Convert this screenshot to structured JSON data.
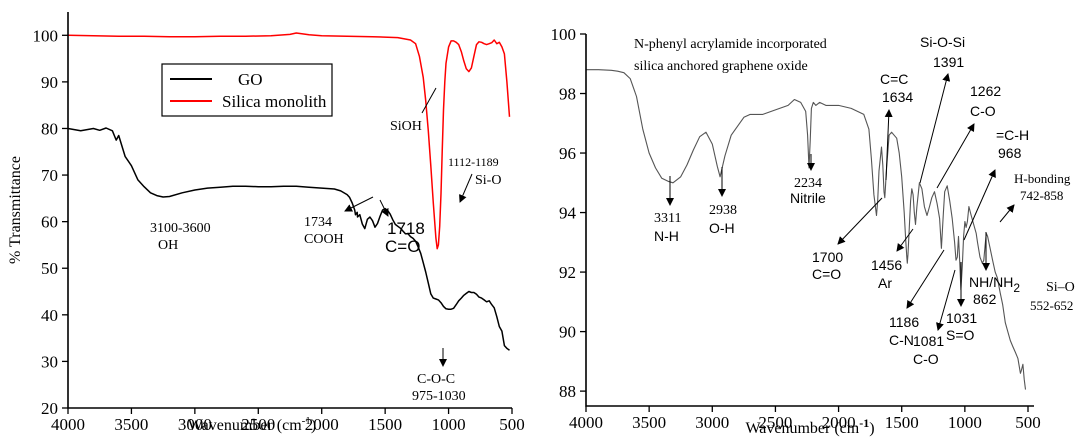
{
  "chart_data": [
    {
      "type": "line",
      "xlabel": "Wavenumber (cm",
      "xlabel_sup": "-1",
      "xlabel_close": ")",
      "ylabel": "% Transmittance",
      "xlim": [
        4000,
        500
      ],
      "ylim": [
        20,
        105
      ],
      "xticks": [
        4000,
        3500,
        3000,
        2500,
        2000,
        1500,
        1000,
        500
      ],
      "yticks": [
        20,
        30,
        40,
        50,
        60,
        70,
        80,
        90,
        100
      ],
      "legend_position": "upper-left-center",
      "series": [
        {
          "name": "GO",
          "color": "#000000",
          "x": [
            4000,
            3900,
            3800,
            3750,
            3700,
            3650,
            3620,
            3600,
            3550,
            3500,
            3450,
            3400,
            3350,
            3300,
            3250,
            3200,
            3100,
            3000,
            2900,
            2800,
            2700,
            2600,
            2500,
            2400,
            2300,
            2200,
            2100,
            2000,
            1900,
            1850,
            1800,
            1780,
            1760,
            1740,
            1734,
            1720,
            1718,
            1700,
            1680,
            1660,
            1640,
            1620,
            1600,
            1580,
            1560,
            1540,
            1520,
            1500,
            1480,
            1460,
            1440,
            1420,
            1400,
            1380,
            1360,
            1340,
            1320,
            1300,
            1280,
            1260,
            1240,
            1220,
            1200,
            1180,
            1160,
            1140,
            1120,
            1100,
            1080,
            1060,
            1040,
            1020,
            1000,
            980,
            960,
            940,
            920,
            900,
            880,
            860,
            840,
            820,
            800,
            780,
            760,
            740,
            720,
            700,
            680,
            660,
            640,
            620,
            600,
            580,
            560,
            540,
            520
          ],
          "y": [
            80,
            79.5,
            80,
            79.6,
            80.1,
            79.5,
            77.5,
            78.5,
            74,
            72,
            69,
            67.5,
            66.2,
            65.6,
            65.3,
            65.4,
            66.2,
            66.8,
            67.2,
            67.4,
            67.6,
            67.6,
            67.5,
            67.5,
            67.6,
            67.6,
            67.4,
            67.2,
            67.0,
            66.6,
            65.8,
            65.2,
            64,
            62.5,
            61.5,
            62,
            61,
            61.5,
            59.5,
            58.5,
            60.5,
            61,
            60.2,
            58.8,
            59.6,
            61.2,
            62.5,
            62.8,
            62.4,
            61.6,
            60.4,
            59.4,
            59.0,
            58.6,
            58.0,
            57.4,
            57.4,
            56.8,
            56.4,
            55.8,
            54.6,
            53.2,
            51.2,
            49.2,
            46.8,
            44.5,
            43.6,
            43.4,
            43.2,
            42.6,
            41.8,
            41.3,
            41.2,
            41.2,
            41.4,
            42.2,
            43.0,
            43.6,
            44.2,
            44.6,
            45.0,
            44.8,
            44.8,
            44.4,
            43.8,
            43.6,
            43.2,
            42.8,
            43.0,
            42.2,
            41.5,
            39.6,
            37.5,
            36.5,
            33.4,
            32.8,
            32.4
          ]
        },
        {
          "name": "Silica monolith",
          "color": "#ff0000",
          "x": [
            4000,
            3800,
            3600,
            3400,
            3200,
            3000,
            2800,
            2600,
            2400,
            2250,
            2200,
            2150,
            2100,
            2000,
            1800,
            1600,
            1400,
            1300,
            1260,
            1230,
            1200,
            1180,
            1160,
            1140,
            1120,
            1100,
            1090,
            1080,
            1070,
            1060,
            1050,
            1040,
            1030,
            1020,
            1000,
            980,
            960,
            940,
            920,
            900,
            880,
            860,
            840,
            820,
            800,
            780,
            760,
            740,
            720,
            700,
            680,
            660,
            640,
            620,
            600,
            580,
            560,
            540,
            520
          ],
          "y": [
            100,
            99.9,
            99.8,
            99.8,
            99.7,
            99.7,
            99.8,
            99.8,
            99.9,
            100.2,
            100.5,
            100.3,
            100.1,
            99.9,
            99.8,
            99.7,
            99.5,
            99.0,
            98.2,
            95.5,
            91,
            86,
            79.5,
            72,
            64,
            56.5,
            54.2,
            55,
            59,
            66,
            75,
            84,
            90,
            94,
            97.5,
            98.8,
            98.8,
            98.5,
            98.0,
            96.5,
            94.5,
            92.8,
            92.2,
            93.0,
            95.5,
            98.0,
            98.6,
            98.5,
            98.2,
            98.0,
            98.2,
            98.4,
            99.0,
            98.2,
            98.5,
            97.5,
            96.0,
            90.0,
            82.5
          ]
        }
      ],
      "annotations": [
        {
          "text": "SiOH"
        },
        {
          "text": "3100-3600",
          "text2": "OH"
        },
        {
          "text": "1734",
          "text2": "COOH"
        },
        {
          "text": "1718",
          "text2": "C=O"
        },
        {
          "text": "1112-1189",
          "text2": "Si-O"
        },
        {
          "text": "C-O-C",
          "text2": "975-1030"
        }
      ]
    },
    {
      "type": "line",
      "xlabel": "Wavenumber (cm",
      "xlabel_sup": "-1",
      "xlabel_close": ")",
      "ylabel": "",
      "xlim": [
        4000,
        500
      ],
      "ylim": [
        87.5,
        100
      ],
      "xticks": [
        4000,
        3500,
        3000,
        2500,
        2000,
        1500,
        1000,
        500
      ],
      "yticks": [
        88,
        90,
        92,
        94,
        96,
        98,
        100
      ],
      "title": "N-phenyl acrylamide incorporated",
      "title2": "silica anchored graphene oxide",
      "series": [
        {
          "color": "#555555",
          "x": [
            4000,
            3900,
            3800,
            3750,
            3700,
            3650,
            3600,
            3550,
            3500,
            3450,
            3400,
            3350,
            3311,
            3250,
            3200,
            3150,
            3100,
            3050,
            3000,
            2960,
            2938,
            2900,
            2850,
            2800,
            2750,
            2700,
            2600,
            2500,
            2400,
            2350,
            2300,
            2260,
            2245,
            2234,
            2225,
            2215,
            2200,
            2180,
            2150,
            2100,
            2050,
            2000,
            1950,
            1900,
            1850,
            1800,
            1760,
            1740,
            1720,
            1700,
            1690,
            1680,
            1660,
            1650,
            1640,
            1634,
            1620,
            1600,
            1580,
            1560,
            1540,
            1520,
            1500,
            1480,
            1470,
            1460,
            1456,
            1450,
            1440,
            1430,
            1420,
            1410,
            1400,
            1391,
            1380,
            1360,
            1340,
            1320,
            1300,
            1280,
            1262,
            1240,
            1220,
            1200,
            1186,
            1170,
            1160,
            1140,
            1120,
            1100,
            1081,
            1070,
            1060,
            1050,
            1040,
            1031,
            1020,
            1010,
            1000,
            990,
            980,
            968,
            950,
            930,
            910,
            900,
            880,
            862,
            850,
            840,
            830,
            820,
            800,
            780,
            760,
            742,
            720,
            700,
            680,
            660,
            640,
            620,
            600,
            580,
            560,
            552,
            540,
            530,
            520
          ],
          "y": [
            98.8,
            98.8,
            98.78,
            98.75,
            98.7,
            98.5,
            97.9,
            96.8,
            96.0,
            95.5,
            95.15,
            95.05,
            95.0,
            95.2,
            95.6,
            96.1,
            96.55,
            96.7,
            96.3,
            95.55,
            95.2,
            95.9,
            96.6,
            96.9,
            97.2,
            97.3,
            97.3,
            97.45,
            97.6,
            97.8,
            97.7,
            97.4,
            96.6,
            95.5,
            96.4,
            97.5,
            97.7,
            97.6,
            97.7,
            97.6,
            97.6,
            97.6,
            97.55,
            97.5,
            97.4,
            97.3,
            96.8,
            95.8,
            94.6,
            93.9,
            94.4,
            95.4,
            96.2,
            95.6,
            94.7,
            94.5,
            95.5,
            96.6,
            96.7,
            96.6,
            96.5,
            96.0,
            95.2,
            94.0,
            93.2,
            92.5,
            92.3,
            92.6,
            93.5,
            94.4,
            94.8,
            94.6,
            94.0,
            93.6,
            94.2,
            95.0,
            94.8,
            94.2,
            93.9,
            94.2,
            94.5,
            94.7,
            94.3,
            93.8,
            92.8,
            94.0,
            94.7,
            94.9,
            94.4,
            93.8,
            93.0,
            92.4,
            92.5,
            93.2,
            92.3,
            91.4,
            92.2,
            93.2,
            93.7,
            93.5,
            93.7,
            94.2,
            93.9,
            93.6,
            93.3,
            93.0,
            92.5,
            92.3,
            92.4,
            92.9,
            93.3,
            93.2,
            92.8,
            92.4,
            92.0,
            91.8,
            91.3,
            90.9,
            90.3,
            90.0,
            89.7,
            89.5,
            89.3,
            89.1,
            88.6,
            88.7,
            88.9,
            88.4,
            88.05
          ]
        }
      ],
      "annotations": [
        {
          "text": "3311",
          "text2": "N-H"
        },
        {
          "text": "2938",
          "text2": "O-H"
        },
        {
          "text": "2234",
          "text2": "Nitrile"
        },
        {
          "text": "C=C",
          "text2": "1634"
        },
        {
          "text": "Si-O-Si",
          "text2": "1391"
        },
        {
          "text": "1262",
          "text2": "C-O"
        },
        {
          "text": "=C-H",
          "text2": "968"
        },
        {
          "text": "H-bonding",
          "text2": "742-858"
        },
        {
          "text": "1700",
          "text2": "C=O"
        },
        {
          "text": "1456",
          "text2": "Ar"
        },
        {
          "text": "1186",
          "text2": "C-N"
        },
        {
          "text": "1081",
          "text2": "C-O"
        },
        {
          "text": "1031",
          "text2": "S=O"
        },
        {
          "text": "NH/NH",
          "text2": "2",
          "text3": "862"
        },
        {
          "text": "Si–O",
          "text2": "552-652"
        }
      ]
    }
  ]
}
